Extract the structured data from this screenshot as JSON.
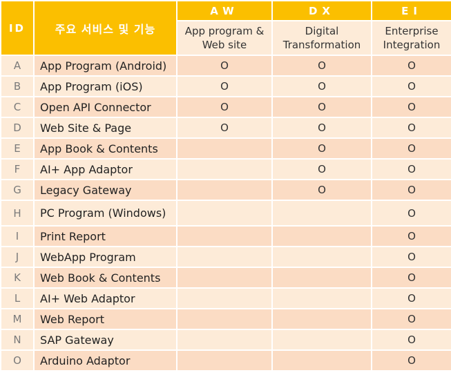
{
  "header": {
    "id_label": "ID",
    "service_label": "주요 서비스 및 기능",
    "groups": [
      {
        "code": "AW",
        "subtitle_line1": "App program &",
        "subtitle_line2": "Web site"
      },
      {
        "code": "DX",
        "subtitle_line1": "Digital",
        "subtitle_line2": "Transformation"
      },
      {
        "code": "EI",
        "subtitle_line1": "Enterprise",
        "subtitle_line2": "Integration"
      }
    ]
  },
  "rows": [
    {
      "id": "A",
      "service": "App Program (Android)",
      "aw": "O",
      "dx": "O",
      "ei": "O"
    },
    {
      "id": "B",
      "service": "App Program (iOS)",
      "aw": "O",
      "dx": "O",
      "ei": "O"
    },
    {
      "id": "C",
      "service": "Open API Connector",
      "aw": "O",
      "dx": "O",
      "ei": "O"
    },
    {
      "id": "D",
      "service": "Web Site & Page",
      "aw": "O",
      "dx": "O",
      "ei": "O"
    },
    {
      "id": "E",
      "service": "App Book & Contents",
      "aw": "",
      "dx": "O",
      "ei": "O"
    },
    {
      "id": "F",
      "service": "AI+ App Adaptor",
      "aw": "",
      "dx": "O",
      "ei": "O"
    },
    {
      "id": "G",
      "service": "Legacy Gateway",
      "aw": "",
      "dx": "O",
      "ei": "O"
    },
    {
      "id": "H",
      "service": "PC Program (Windows)",
      "aw": "",
      "dx": "",
      "ei": "O"
    },
    {
      "id": "I",
      "service": "Print Report",
      "aw": "",
      "dx": "",
      "ei": "O"
    },
    {
      "id": "J",
      "service": "WebApp Program",
      "aw": "",
      "dx": "",
      "ei": "O"
    },
    {
      "id": "K",
      "service": "Web Book & Contents",
      "aw": "",
      "dx": "",
      "ei": "O"
    },
    {
      "id": "L",
      "service": "AI+ Web Adaptor",
      "aw": "",
      "dx": "",
      "ei": "O"
    },
    {
      "id": "M",
      "service": "Web Report",
      "aw": "",
      "dx": "",
      "ei": "O"
    },
    {
      "id": "N",
      "service": "SAP Gateway",
      "aw": "",
      "dx": "",
      "ei": "O"
    },
    {
      "id": "O",
      "service": "Arduino Adaptor",
      "aw": "",
      "dx": "",
      "ei": "O"
    }
  ],
  "colors": {
    "header_bg": "#fbbf00",
    "row_odd_bg": "#fbdcc4",
    "row_even_bg": "#fdebd8"
  }
}
